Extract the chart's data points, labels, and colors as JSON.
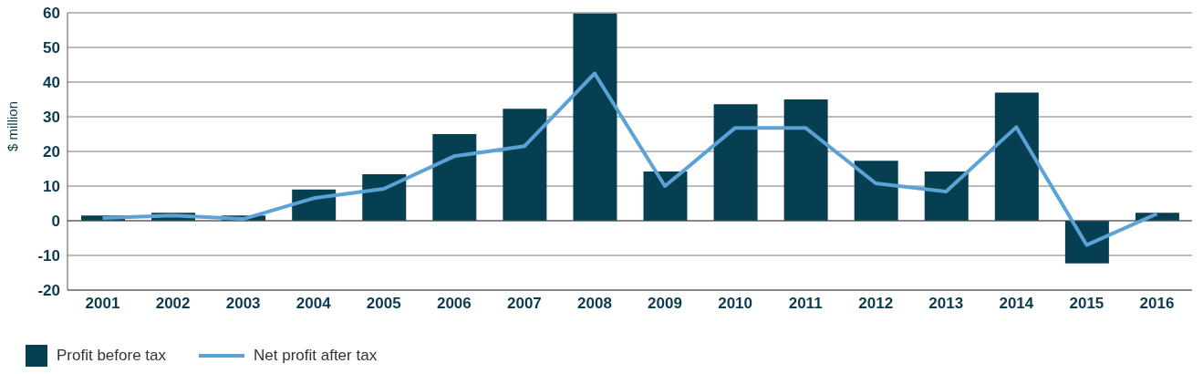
{
  "chart_data": {
    "type": "bar",
    "ylabel": "$ million",
    "categories": [
      "2001",
      "2002",
      "2003",
      "2004",
      "2005",
      "2006",
      "2007",
      "2008",
      "2009",
      "2010",
      "2011",
      "2012",
      "2013",
      "2014",
      "2015",
      "2016"
    ],
    "series": [
      {
        "name": "Profit before tax",
        "color": "#073f52",
        "values": [
          1.5,
          2.3,
          1.5,
          9,
          13.4,
          25,
          32.3,
          59.8,
          14.2,
          33.6,
          35,
          17.3,
          14.2,
          37,
          -12.3,
          2.3
        ]
      },
      {
        "name": "Net profit after tax",
        "type": "line",
        "color": "#5ba3d6",
        "values": [
          0.8,
          1.5,
          0.5,
          6.5,
          9.2,
          18.6,
          21.5,
          42.5,
          10,
          26.8,
          26.8,
          10.8,
          8.4,
          27,
          -7,
          2
        ]
      }
    ],
    "ylim": [
      -20,
      60
    ],
    "yticks": [
      -20,
      -10,
      0,
      10,
      20,
      30,
      40,
      50,
      60
    ],
    "grid": "y",
    "legend": "bottom left",
    "marker": "none"
  }
}
